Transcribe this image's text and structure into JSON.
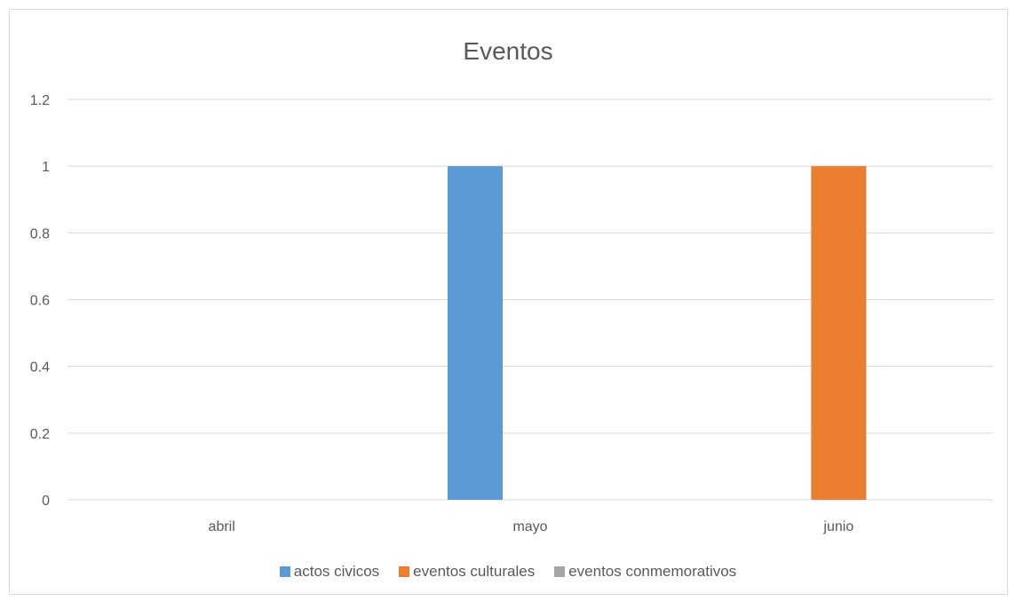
{
  "chart_data": {
    "type": "bar",
    "title": "Eventos",
    "categories": [
      "abril",
      "mayo",
      "junio"
    ],
    "series": [
      {
        "name": "actos civicos",
        "values": [
          0,
          1,
          0
        ],
        "color": "#5b9bd5"
      },
      {
        "name": "eventos culturales",
        "values": [
          0,
          0,
          1
        ],
        "color": "#ed7d31"
      },
      {
        "name": "eventos conmemorativos",
        "values": [
          0,
          0,
          0
        ],
        "color": "#a5a5a5"
      }
    ],
    "ylim": [
      0,
      1.2
    ],
    "yticks": [
      "0",
      "0.2",
      "0.4",
      "0.6",
      "0.8",
      "1",
      "1.2"
    ],
    "grid": true,
    "legend_position": "bottom"
  }
}
